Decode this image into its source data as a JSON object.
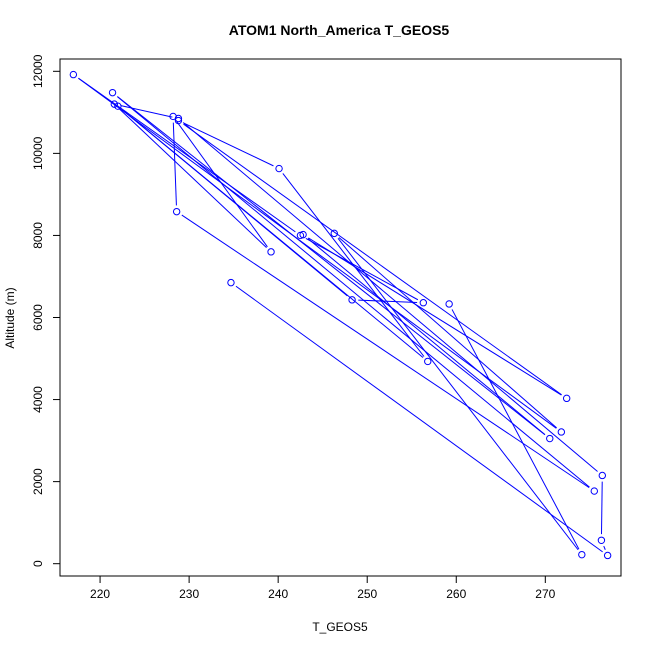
{
  "chart_data": {
    "type": "line",
    "title": "ATOM1 North_America T_GEOS5",
    "xlabel": "T_GEOS5",
    "ylabel": "Altitude (m)",
    "xlim": [
      215.5,
      278.5
    ],
    "ylim": [
      -300,
      12300
    ],
    "xticks": [
      220,
      230,
      240,
      250,
      260,
      270
    ],
    "yticks": [
      0,
      2000,
      4000,
      6000,
      8000,
      10000,
      12000
    ],
    "xtick_labels": [
      "220",
      "230",
      "240",
      "250",
      "260",
      "270"
    ],
    "ytick_labels": [
      "0",
      "2000",
      "4000",
      "6000",
      "8000",
      "10000",
      "12000"
    ],
    "color": "#0000ff",
    "series": [
      {
        "x": [
          234.7,
          277.0,
          276.3,
          276.4,
          228.8,
          221.6,
          239.2,
          228.2,
          228.6,
          275.5,
          221.4,
          270.5,
          242.8,
          272.4,
          228.8,
          240.1,
          256.8,
          222.0,
          248.3,
          256.3,
          242.5,
          217.0,
          271.8,
          246.3,
          274.1,
          259.2
        ],
        "y": [
          6850,
          200,
          570,
          2150,
          10850,
          11200,
          7600,
          10900,
          8580,
          1770,
          11480,
          3050,
          8020,
          4030,
          10800,
          9630,
          4930,
          11150,
          6430,
          6360,
          8000,
          11920,
          3210,
          8050,
          220,
          6330
        ]
      }
    ]
  }
}
